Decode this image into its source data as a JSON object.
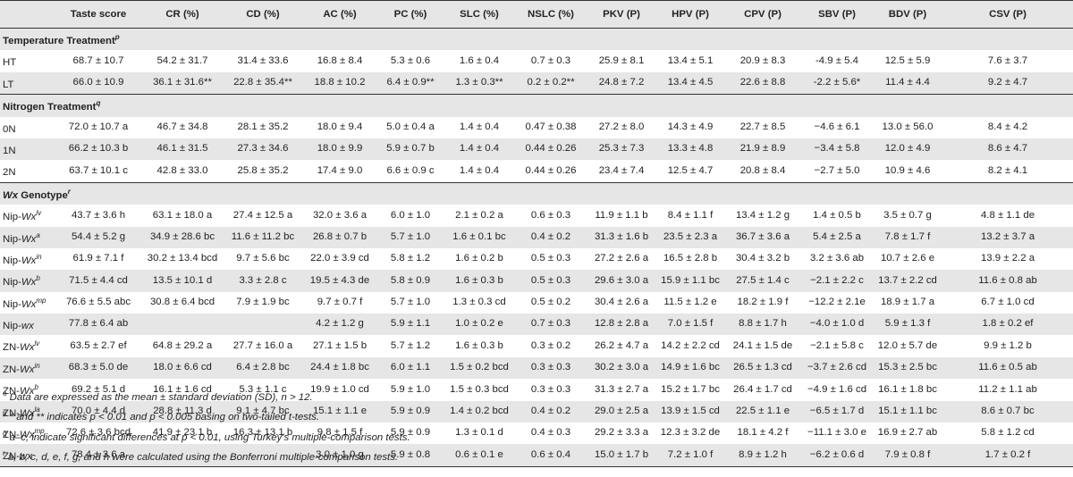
{
  "columns": [
    "",
    "Taste score",
    "CR (%)",
    "CD (%)",
    "AC (%)",
    "PC (%)",
    "SLC (%)",
    "NSLC (%)",
    "PKV (P)",
    "HPV (P)",
    "CPV (P)",
    "SBV (P)",
    "BDV (P)",
    "CSV (P)"
  ],
  "sections": [
    {
      "title": "Temperature Treatment",
      "title_sup": "p",
      "rows": [
        {
          "label": "HT",
          "label_sup": "",
          "values": [
            "68.7 ± 10.7",
            "54.2 ± 31.7",
            "31.4 ± 33.6",
            "16.8 ± 8.4",
            "5.3 ± 0.6",
            "1.6 ± 0.4",
            "0.7 ± 0.3",
            "25.9 ± 8.1",
            "13.4 ± 5.1",
            "20.9 ± 8.3",
            "-4.9 ± 5.4",
            "12.5 ± 5.9",
            "7.6 ± 3.7"
          ]
        },
        {
          "label": "LT",
          "label_sup": "",
          "values": [
            "66.0 ± 10.9",
            "36.1 ± 31.6**",
            "22.8 ± 35.4**",
            "18.8 ± 10.2",
            "6.4 ± 0.9**",
            "1.3 ± 0.3**",
            "0.2 ± 0.2**",
            "24.8 ± 7.2",
            "13.4 ± 4.5",
            "22.6 ± 8.8",
            "-2.2 ± 5.6*",
            "11.4 ± 4.4",
            "9.2 ± 4.7"
          ]
        }
      ]
    },
    {
      "title": "Nitrogen Treatment",
      "title_sup": "q",
      "rows": [
        {
          "label": "0N",
          "label_sup": "",
          "values": [
            "72.0 ± 10.7 a",
            "46.7 ± 34.8",
            "28.1 ± 35.2",
            "18.0 ± 9.4",
            "5.0 ± 0.4 a",
            "1.4 ± 0.4",
            "0.47 ± 0.38",
            "27.2 ± 8.0",
            "14.3 ± 4.9",
            "22.7 ± 8.5",
            "−4.6 ± 6.1",
            "13.0 ± 56.0",
            "8.4 ± 4.2"
          ]
        },
        {
          "label": "1N",
          "label_sup": "",
          "values": [
            "66.2 ± 10.3 b",
            "46.1 ± 31.5",
            "27.3 ± 34.6",
            "18.0 ± 9.9",
            "5.9 ± 0.7 b",
            "1.4 ± 0.4",
            "0.44 ± 0.26",
            "25.3 ± 7.3",
            "13.3 ± 4.8",
            "21.9 ± 8.9",
            "−3.4 ± 5.8",
            "12.0 ± 4.9",
            "8.6 ± 4.7"
          ]
        },
        {
          "label": "2N",
          "label_sup": "",
          "values": [
            "63.7 ± 10.1 c",
            "42.8 ± 33.0",
            "25.8 ± 35.2",
            "17.4 ± 9.0",
            "6.6 ± 0.9 c",
            "1.4 ± 0.4",
            "0.44 ± 0.26",
            "23.4 ± 7.4",
            "12.5 ± 4.7",
            "20.8 ± 8.4",
            "−2.7 ± 5.0",
            "10.9 ± 4.6",
            "8.2 ± 4.1"
          ]
        }
      ]
    },
    {
      "title": "Wx Genotype",
      "title_sup": "r",
      "rows": [
        {
          "label": "Nip-Wx",
          "label_sup": "lv",
          "values": [
            "43.7 ± 3.6 h",
            "63.1 ± 18.0 a",
            "27.4 ± 12.5 a",
            "32.0 ± 3.6 a",
            "6.0 ± 1.0",
            "2.1 ± 0.2 a",
            "0.6 ± 0.3",
            "11.9 ± 1.1 b",
            "8.4 ± 1.1 f",
            "13.4 ± 1.2 g",
            "1.4 ± 0.5 b",
            "3.5 ± 0.7 g",
            "4.8 ± 1.1 de"
          ]
        },
        {
          "label": "Nip-Wx",
          "label_sup": "a",
          "values": [
            "54.4 ± 5.2 g",
            "34.9 ± 28.6 bc",
            "11.6 ± 11.2 bc",
            "26.8 ± 0.7 b",
            "5.7 ± 1.0",
            "1.6 ± 0.1 bc",
            "0.4 ± 0.2",
            "31.3 ± 1.6 b",
            "23.5 ± 2.3 a",
            "36.7 ± 3.6 a",
            "5.4 ± 2.5 a",
            "7.8 ± 1.7 f",
            "13.2 ± 3.7 a"
          ]
        },
        {
          "label": "Nip-Wx",
          "label_sup": "in",
          "values": [
            "61.9 ± 7.1 f",
            "30.2 ± 13.4 bcd",
            "9.7 ± 5.6 bc",
            "22.0 ± 3.9 cd",
            "5.8 ± 1.2",
            "1.6 ± 0.2 b",
            "0.5 ± 0.3",
            "27.2 ± 2.6 a",
            "16.5 ± 2.8 b",
            "30.4 ± 3.2 b",
            "3.2 ± 3.6 ab",
            "10.7 ± 2.6 e",
            "13.9 ± 2.2 a"
          ]
        },
        {
          "label": "Nip-Wx",
          "label_sup": "b",
          "values": [
            "71.5 ± 4.4 cd",
            "13.5 ± 10.1 d",
            "3.3 ± 2.8 c",
            "19.5 ± 4.3 de",
            "5.8 ± 0.9",
            "1.6 ± 0.3 b",
            "0.5 ± 0.3",
            "29.6 ± 3.0 a",
            "15.9 ± 1.1 bc",
            "27.5 ± 1.4 c",
            "−2.1 ± 2.2 c",
            "13.7 ± 2.2 cd",
            "11.6 ± 0.8 ab"
          ]
        },
        {
          "label": "Nip-Wx",
          "label_sup": "mp",
          "values": [
            "76.6 ± 5.5 abc",
            "30.8 ± 6.4 bcd",
            "7.9 ± 1.9 bc",
            "9.7 ± 0.7 f",
            "5.7 ± 1.0",
            "1.3 ± 0.3 cd",
            "0.5 ± 0.2",
            "30.4 ± 2.6 a",
            "11.5 ± 1.2 e",
            "18.2 ± 1.9 f",
            "−12.2 ± 2.1e",
            "18.9 ± 1.7 a",
            "6.7 ± 1.0 cd"
          ]
        },
        {
          "label": "Nip-wx",
          "label_sup": "",
          "values": [
            "77.8 ± 6.4 ab",
            "",
            "",
            "4.2 ± 1.2 g",
            "5.9 ± 1.1",
            "1.0 ± 0.2 e",
            "0.7 ± 0.3",
            "12.8 ± 2.8 a",
            "7.0 ± 1.5 f",
            "8.8 ± 1.7 h",
            "−4.0 ± 1.0 d",
            "5.9 ± 1.3 f",
            "1.8 ± 0.2 ef"
          ]
        },
        {
          "label": "ZN-Wx",
          "label_sup": "lv",
          "values": [
            "63.5 ± 2.7 ef",
            "64.8 ± 29.2 a",
            "27.7 ± 16.0 a",
            "27.1 ± 1.5 b",
            "5.7 ± 1.2",
            "1.6 ± 0.3 b",
            "0.3 ± 0.2",
            "26.2 ± 4.7 a",
            "14.2 ± 2.2 cd",
            "24.1 ± 1.5 de",
            "−2.1 ± 5.8 c",
            "12.0 ± 5.7 de",
            "9.9 ± 1.2 b"
          ]
        },
        {
          "label": "ZN-Wx",
          "label_sup": "in",
          "values": [
            "68.3 ± 5.0 de",
            "18.0 ± 6.6 cd",
            "6.4 ± 2.8 bc",
            "24.4 ± 1.8 bc",
            "6.0 ± 1.1",
            "1.5 ± 0.2 bcd",
            "0.3 ± 0.3",
            "30.2 ± 3.0 a",
            "14.9 ± 1.6 bc",
            "26.5 ± 1.3 cd",
            "−3.7 ± 2.6 cd",
            "15.3 ± 2.5 bc",
            "11.6 ± 0.5 ab"
          ]
        },
        {
          "label": "ZN-Wx",
          "label_sup": "b",
          "values": [
            "69.2 ± 5.1 d",
            "16.1 ± 1.6 cd",
            "5.3 ± 1.1 c",
            "19.9 ± 1.0 cd",
            "5.9 ± 1.0",
            "1.5 ± 0.3 bcd",
            "0.3 ± 0.3",
            "31.3 ± 2.7 a",
            "15.2 ± 1.7 bc",
            "26.4 ± 1.7 cd",
            "−4.9 ± 1.6 cd",
            "16.1 ± 1.8 bc",
            "11.2 ± 1.1 ab"
          ]
        },
        {
          "label": "ZN-Wx",
          "label_sup": "la",
          "values": [
            "70.0 ± 4.4 d",
            "28.8 ± 11.3 d",
            "9.1 ± 4.7 bc",
            "15.1 ± 1.1 e",
            "5.9 ± 0.9",
            "1.4 ± 0.2 bcd",
            "0.4 ± 0.2",
            "29.0 ± 2.5 a",
            "13.9 ± 1.5 cd",
            "22.5 ± 1.1 e",
            "−6.5 ± 1.7 d",
            "15.1 ± 1.1 bc",
            "8.6 ± 0.7 bc"
          ]
        },
        {
          "label": "ZN-Wx",
          "label_sup": "mp",
          "values": [
            "72.6 ± 3.6 bcd",
            "41.9 ± 23.1 b",
            "16.3 ± 13.1 b",
            "9.8 ± 1.5 f",
            "5.9 ± 0.9",
            "1.3 ± 0.1 d",
            "0.4 ± 0.3",
            "29.2 ± 3.3 a",
            "12.3 ± 3.2 de",
            "18.1 ± 4.2 f",
            "−11.1 ± 3.0 e",
            "16.9 ± 2.7 ab",
            "5.8 ± 1.2 cd"
          ]
        },
        {
          "label": "ZN-wx",
          "label_sup": "",
          "values": [
            "78.4 ± 3.6 a",
            "",
            "",
            "3.0 ± 1.0 g",
            "5.9 ± 0.8",
            "0.6 ± 0.1 e",
            "0.6 ± 0.4",
            "15.0 ± 1.7 b",
            "7.2 ± 1.0 f",
            "8.9 ± 1.2 h",
            "−6.2 ± 0.6 d",
            "7.9 ± 0.8 f",
            "1.7 ± 0.2 f"
          ]
        }
      ]
    }
  ],
  "footnotes": [
    {
      "mark": "o",
      "text": "Data are expressed as the mean ± standard deviation (SD), n > 12."
    },
    {
      "mark": "p",
      "text": "* and ** indicates p < 0.01 and p < 0.005 basing on two-tailed t-tests."
    },
    {
      "mark": "q",
      "text": "a–c, indicate significant differences at p < 0.01, using Turkey's multiple-comparison tests."
    },
    {
      "mark": "r",
      "text": "a, b, c, d, e, f, g, and h were calculated using the Bonferroni multiple-comparison tests."
    }
  ],
  "colors": {
    "shade": "#e6e6e6",
    "rule": "#333333"
  }
}
